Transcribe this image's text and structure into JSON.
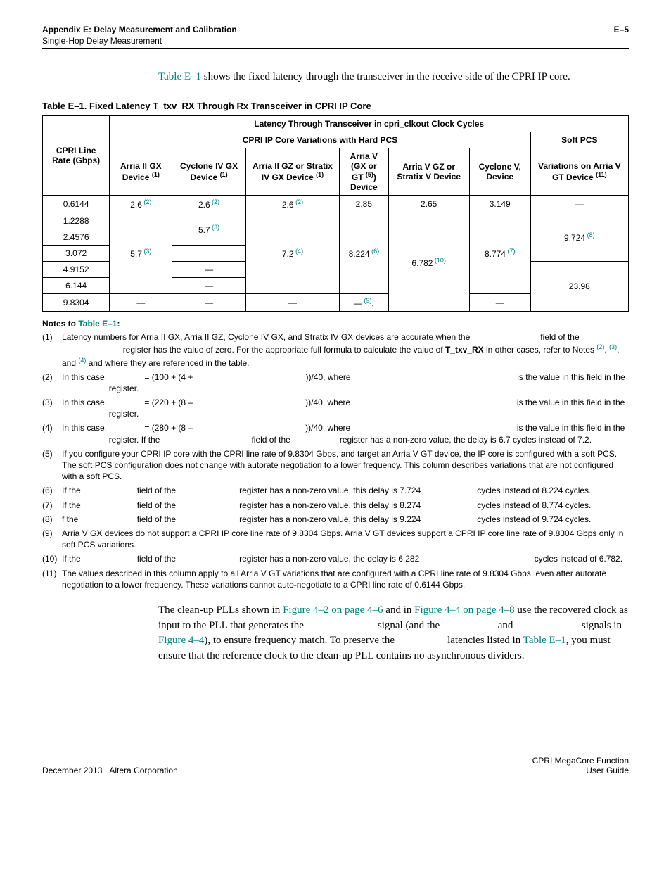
{
  "header": {
    "appendix": "Appendix E: Delay Measurement and Calibration",
    "sub": "Single-Hop Delay Measurement",
    "pagenum": "E–5"
  },
  "intro": {
    "link": "Table E–1",
    "rest": " shows the fixed latency through the transceiver in the receive side of the CPRI IP core."
  },
  "caption": "Table E–1. Fixed Latency T_txv_RX Through Rx Transceiver in CPRI IP Core",
  "col_heads": {
    "rate": "CPRI Line Rate (Gbps)",
    "group_top": "Latency Through Transceiver in cpri_clkout Clock Cycles",
    "hard_pcs_group": "CPRI IP Core Variations with Hard PCS",
    "soft_pcs_group": "Soft PCS",
    "c1": "Arria II GX Device",
    "c2": "Cyclone IV GX Device",
    "c3": "Arria II GZ or Stratix IV GX Device",
    "c4_a": "Arria V",
    "c4_b": "(GX or GT",
    "c4_c": ")",
    "c4_d": "Device",
    "c5": "Arria V GZ or Stratix V Device",
    "c6": "Cyclone V, Device",
    "c7": "Variations on Arria V GT Device"
  },
  "rows": {
    "r1_rate": "0.6144",
    "r1_c1": "2.6",
    "r1_c2": "2.6",
    "r1_c3": "2.6",
    "r1_c4": "2.85",
    "r1_c5": "2.65",
    "r1_c6": "3.149",
    "r1_c7": "—",
    "r2_rate": "1.2288",
    "r3_rate": "2.4576",
    "r4_rate": "3.072",
    "r5_rate": "4.9152",
    "r6_rate": "6.144",
    "r7_rate": "9.8304",
    "m_c1": "5.7",
    "m_c2a": "5.7",
    "m_c2b": "—",
    "m_c2c": "—",
    "m_c3": "7.2",
    "m_c4": "8.224",
    "m_c5": "6.782",
    "m_c6": "8.774",
    "m_c7a": "9.724",
    "m_c7b": "23.98",
    "r7_c1": "—",
    "r7_c2": "—",
    "r7_c3": "—",
    "r7_c4": "—",
    "r7_c4_comma": ",",
    "r7_c6": "—"
  },
  "notes_title_a": "Notes to ",
  "notes_title_b": "Table E–1",
  "notes_title_c": ":",
  "notes": {
    "n1_a": "Latency numbers for Arria II GX, Arria II GZ, Cyclone IV GX, and Stratix IV GX devices are accurate when the ",
    "n1_field": "field of the ",
    "n1_b": "register has the value of zero. For the appropriate full formula to calculate the value of ",
    "n1_code": "T_txv_RX",
    "n1_c": " in other cases, refer to Notes ",
    "n1_c2": "(2)",
    "n1_c3": "(3)",
    "n1_c4": "(4)",
    "n1_d": " and where they are referenced in the table.",
    "n2_a": "In this case, ",
    "n2_eq": "= (100 + (4 + ",
    "n2_b": "))/40, where ",
    "n2_c": "is the value in this field in the ",
    "n2_d": "register.",
    "n3_a": "In this case, ",
    "n3_eq": "= (220 + (8 – ",
    "n3_b": "))/40, where ",
    "n3_c": "is the value in this field in the ",
    "n3_d": "register.",
    "n4_a": "In this case, ",
    "n4_eq": "= (280 + (8 – ",
    "n4_b": "))/40, where ",
    "n4_c": "is the value in this field in the ",
    "n4_d": "register. If the ",
    "n4_e": "field of the ",
    "n4_f": "register has a non-zero value, the delay is 6.7 cycles instead of 7.2.",
    "n5": "If you configure your CPRI IP core with the CPRI line rate of 9.8304 Gbps, and target an Arria V GT device, the IP core is configured with a soft PCS. The soft PCS configuration does not change with autorate negotiation to a lower frequency. This column describes variations that are not configured with a soft PCS.",
    "n6_a": "If the ",
    "n6_b": "field of the ",
    "n6_c": "register has a non-zero value, this delay is 7.724 ",
    "n6_d": "cycles instead of 8.224 cycles.",
    "n7_a": "If the ",
    "n7_b": "field of the ",
    "n7_c": "register has a non-zero value, this delay is 8.274 ",
    "n7_d": "cycles instead of 8.774 cycles.",
    "n8_a": "f the ",
    "n8_b": "field of the ",
    "n8_c": "register has a non-zero value, this delay is 9.224 ",
    "n8_d": "cycles instead of 9.724 cycles.",
    "n9": "Arria V GX devices do not support a CPRI IP core line rate of 9.8304 Gbps. Arria V GT devices support a CPRI IP core line rate of 9.8304 Gbps only in soft PCS variations.",
    "n10_a": "If the ",
    "n10_b": "field of the ",
    "n10_c": "register has a non-zero value, the delay is 6.282 ",
    "n10_d": "cycles instead of 6.782.",
    "n11": "The values described in this column apply to all Arria V GT variations that are configured with a CPRI line rate of 9.8304 Gbps, even after autorate negotiation to a lower frequency. These variations cannot auto-negotiate to a CPRI line rate of 0.6144 Gbps."
  },
  "body": {
    "p1_a": "The clean-up PLLs shown in ",
    "p1_l1": "Figure 4–2 on page 4–6",
    "p1_b": " and in ",
    "p1_l2": "Figure 4–4 on page 4–8",
    "p1_c": " use the recovered clock as input to the PLL that generates the ",
    "p1_d": "signal (and the ",
    "p1_e": "and ",
    "p1_f": "signals in ",
    "p1_l3": "Figure 4–4",
    "p1_g": "), to ensure frequency match. To preserve the ",
    "p1_h": "latencies listed in ",
    "p1_l4": "Table E–1",
    "p1_i": ", you must ensure that the reference clock to the clean-up PLL contains no asynchronous dividers."
  },
  "footer": {
    "left": "December 2013   Altera Corporation",
    "right_a": "CPRI MegaCore Function",
    "right_b": "User Guide"
  }
}
